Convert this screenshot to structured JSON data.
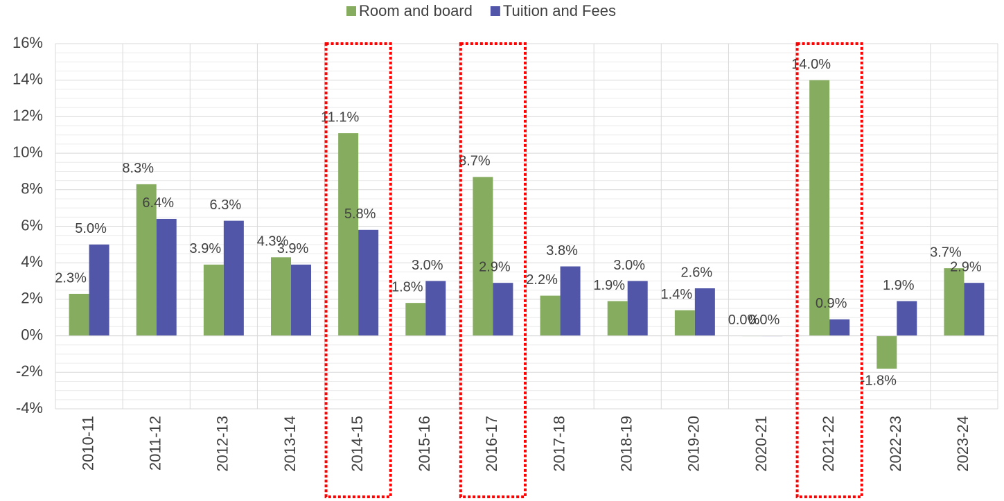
{
  "chart_data": {
    "type": "bar",
    "categories": [
      "2010-11",
      "2011-12",
      "2012-13",
      "2013-14",
      "2014-15",
      "2015-16",
      "2016-17",
      "2017-18",
      "2018-19",
      "2019-20",
      "2020-21",
      "2021-22",
      "2022-23",
      "2023-24"
    ],
    "series": [
      {
        "name": "Room and board",
        "color": "#86ad5f",
        "values": [
          2.3,
          8.3,
          3.9,
          4.3,
          11.1,
          1.8,
          8.7,
          2.2,
          1.9,
          1.4,
          0.0,
          14.0,
          -1.8,
          3.7
        ],
        "value_labels": [
          "2.3%",
          "8.3%",
          "3.9%",
          "4.3%",
          "11.1%",
          "1.8%",
          "8.7%",
          "2.2%",
          "1.9%",
          "1.4%",
          "0.0%",
          "14.0%",
          "-1.8%",
          "3.7%"
        ]
      },
      {
        "name": "Tuition and Fees",
        "color": "#5156a8",
        "values": [
          5.0,
          6.4,
          6.3,
          3.9,
          5.8,
          3.0,
          2.9,
          3.8,
          3.0,
          2.6,
          0.0,
          0.9,
          1.9,
          2.9
        ],
        "value_labels": [
          "5.0%",
          "6.4%",
          "6.3%",
          "3.9%",
          "5.8%",
          "3.0%",
          "2.9%",
          "3.8%",
          "3.0%",
          "2.6%",
          "0.0%",
          "0.9%",
          "1.9%",
          "2.9%"
        ]
      }
    ],
    "ylim": [
      -4,
      16
    ],
    "yticks": [
      {
        "value": -4,
        "label": "-4%"
      },
      {
        "value": -2,
        "label": "-2%"
      },
      {
        "value": 0,
        "label": "0%"
      },
      {
        "value": 2,
        "label": "2%"
      },
      {
        "value": 4,
        "label": "4%"
      },
      {
        "value": 6,
        "label": "6%"
      },
      {
        "value": 8,
        "label": "8%"
      },
      {
        "value": 10,
        "label": "10%"
      },
      {
        "value": 12,
        "label": "12%"
      },
      {
        "value": 14,
        "label": "14%"
      },
      {
        "value": 16,
        "label": "16%"
      }
    ],
    "grid": true,
    "minor_grid": true,
    "legend": "top",
    "highlight": [
      4,
      6,
      11
    ]
  }
}
